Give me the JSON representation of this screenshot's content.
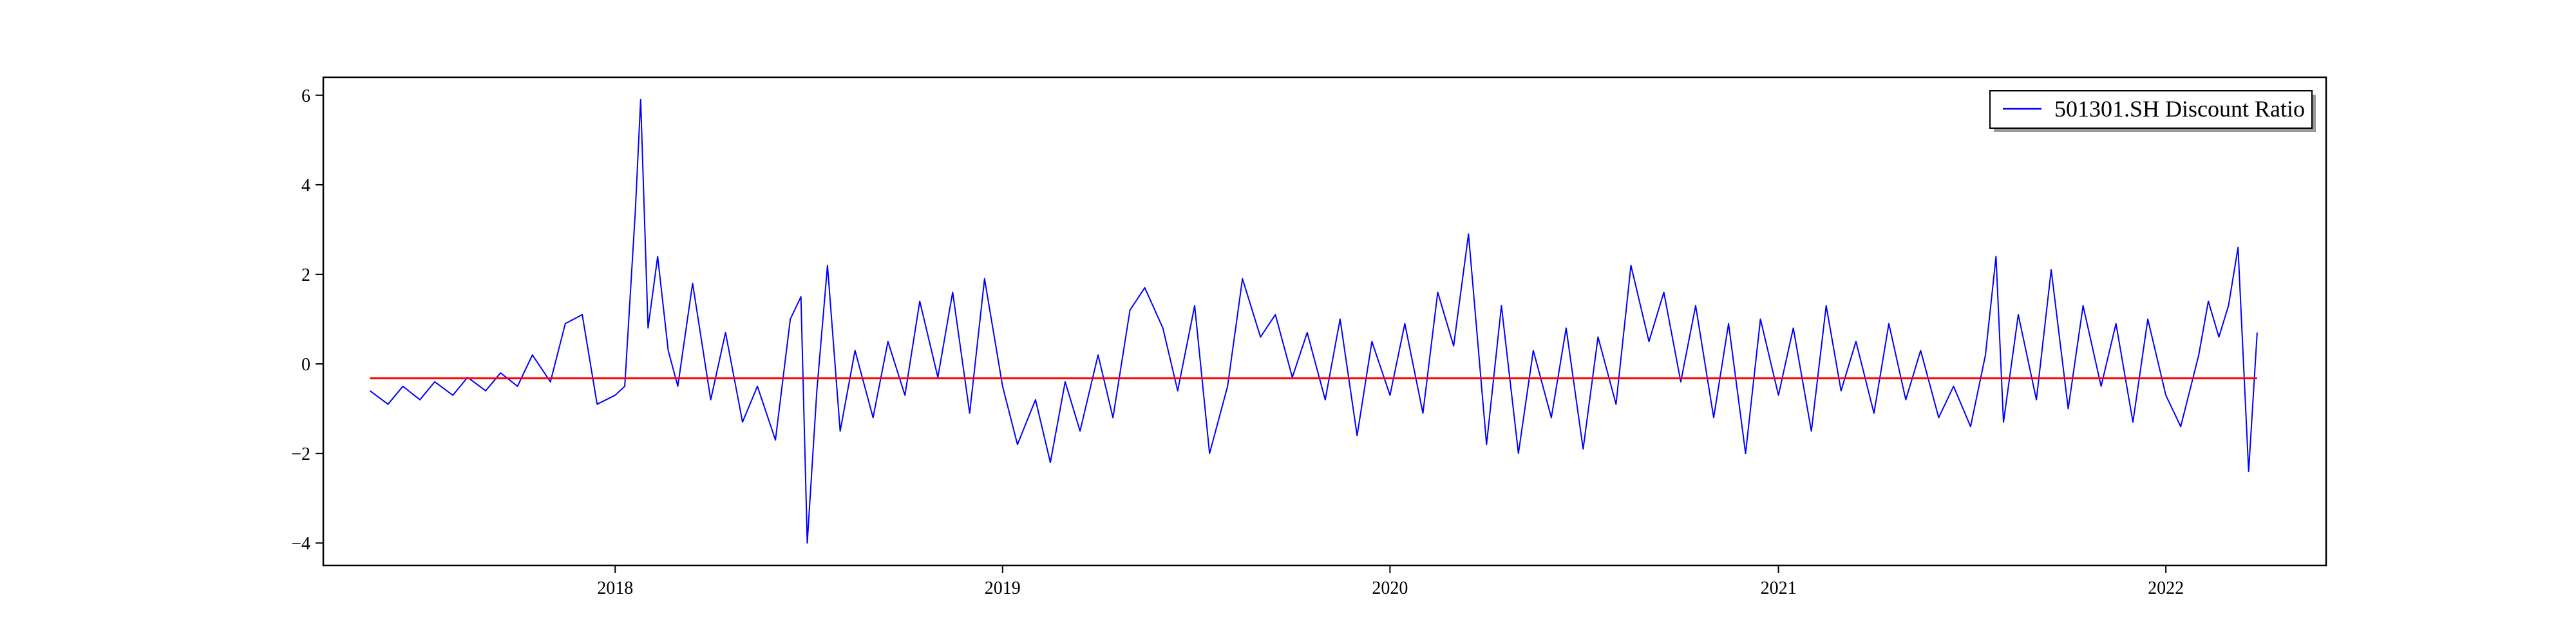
{
  "chart_data": {
    "type": "line",
    "title": "",
    "xlabel": "",
    "ylabel": "",
    "xlim": [
      "2017-04-01",
      "2022-06-01"
    ],
    "ylim": [
      -4.5,
      6.4
    ],
    "xticks": [
      {
        "date": "2018-01-01",
        "label": "2018"
      },
      {
        "date": "2019-01-01",
        "label": "2019"
      },
      {
        "date": "2020-01-01",
        "label": "2020"
      },
      {
        "date": "2021-01-01",
        "label": "2021"
      },
      {
        "date": "2022-01-01",
        "label": "2022"
      }
    ],
    "yticks": [
      -4,
      -2,
      0,
      2,
      4,
      6
    ],
    "grid": false,
    "legend_position": "top-right",
    "series": [
      {
        "name": "501301.SH Discount Ratio",
        "color": "#0000ff",
        "points": [
          [
            "2017-05-15",
            -0.6
          ],
          [
            "2017-06-01",
            -0.9
          ],
          [
            "2017-06-15",
            -0.5
          ],
          [
            "2017-07-01",
            -0.8
          ],
          [
            "2017-07-15",
            -0.4
          ],
          [
            "2017-08-01",
            -0.7
          ],
          [
            "2017-08-15",
            -0.3
          ],
          [
            "2017-09-01",
            -0.6
          ],
          [
            "2017-09-15",
            -0.2
          ],
          [
            "2017-10-01",
            -0.5
          ],
          [
            "2017-10-15",
            0.2
          ],
          [
            "2017-11-01",
            -0.4
          ],
          [
            "2017-11-15",
            0.9
          ],
          [
            "2017-12-01",
            1.1
          ],
          [
            "2017-12-15",
            -0.9
          ],
          [
            "2018-01-01",
            -0.7
          ],
          [
            "2018-01-10",
            -0.5
          ],
          [
            "2018-01-20",
            3.4
          ],
          [
            "2018-01-25",
            5.9
          ],
          [
            "2018-02-01",
            0.8
          ],
          [
            "2018-02-10",
            2.4
          ],
          [
            "2018-02-20",
            0.3
          ],
          [
            "2018-03-01",
            -0.5
          ],
          [
            "2018-03-15",
            1.8
          ],
          [
            "2018-04-01",
            -0.8
          ],
          [
            "2018-04-15",
            0.7
          ],
          [
            "2018-05-01",
            -1.3
          ],
          [
            "2018-05-15",
            -0.5
          ],
          [
            "2018-06-01",
            -1.7
          ],
          [
            "2018-06-15",
            1.0
          ],
          [
            "2018-06-25",
            1.5
          ],
          [
            "2018-07-01",
            -4.0
          ],
          [
            "2018-07-10",
            -0.6
          ],
          [
            "2018-07-20",
            2.2
          ],
          [
            "2018-08-01",
            -1.5
          ],
          [
            "2018-08-15",
            0.3
          ],
          [
            "2018-09-01",
            -1.2
          ],
          [
            "2018-09-15",
            0.5
          ],
          [
            "2018-10-01",
            -0.7
          ],
          [
            "2018-10-15",
            1.4
          ],
          [
            "2018-11-01",
            -0.3
          ],
          [
            "2018-11-15",
            1.6
          ],
          [
            "2018-12-01",
            -1.1
          ],
          [
            "2018-12-15",
            1.9
          ],
          [
            "2019-01-01",
            -0.5
          ],
          [
            "2019-01-15",
            -1.8
          ],
          [
            "2019-02-01",
            -0.8
          ],
          [
            "2019-02-15",
            -2.2
          ],
          [
            "2019-03-01",
            -0.4
          ],
          [
            "2019-03-15",
            -1.5
          ],
          [
            "2019-04-01",
            0.2
          ],
          [
            "2019-04-15",
            -1.2
          ],
          [
            "2019-05-01",
            1.2
          ],
          [
            "2019-05-15",
            1.7
          ],
          [
            "2019-06-01",
            0.8
          ],
          [
            "2019-06-15",
            -0.6
          ],
          [
            "2019-07-01",
            1.3
          ],
          [
            "2019-07-15",
            -2.0
          ],
          [
            "2019-08-01",
            -0.5
          ],
          [
            "2019-08-15",
            1.9
          ],
          [
            "2019-09-01",
            0.6
          ],
          [
            "2019-09-15",
            1.1
          ],
          [
            "2019-10-01",
            -0.3
          ],
          [
            "2019-10-15",
            0.7
          ],
          [
            "2019-11-01",
            -0.8
          ],
          [
            "2019-11-15",
            1.0
          ],
          [
            "2019-12-01",
            -1.6
          ],
          [
            "2019-12-15",
            0.5
          ],
          [
            "2020-01-01",
            -0.7
          ],
          [
            "2020-01-15",
            0.9
          ],
          [
            "2020-02-01",
            -1.1
          ],
          [
            "2020-02-15",
            1.6
          ],
          [
            "2020-03-01",
            0.4
          ],
          [
            "2020-03-15",
            2.9
          ],
          [
            "2020-04-01",
            -1.8
          ],
          [
            "2020-04-15",
            1.3
          ],
          [
            "2020-05-01",
            -2.0
          ],
          [
            "2020-05-15",
            0.3
          ],
          [
            "2020-06-01",
            -1.2
          ],
          [
            "2020-06-15",
            0.8
          ],
          [
            "2020-07-01",
            -1.9
          ],
          [
            "2020-07-15",
            0.6
          ],
          [
            "2020-08-01",
            -0.9
          ],
          [
            "2020-08-15",
            2.2
          ],
          [
            "2020-09-01",
            0.5
          ],
          [
            "2020-09-15",
            1.6
          ],
          [
            "2020-10-01",
            -0.4
          ],
          [
            "2020-10-15",
            1.3
          ],
          [
            "2020-11-01",
            -1.2
          ],
          [
            "2020-11-15",
            0.9
          ],
          [
            "2020-12-01",
            -2.0
          ],
          [
            "2020-12-15",
            1.0
          ],
          [
            "2021-01-01",
            -0.7
          ],
          [
            "2021-01-15",
            0.8
          ],
          [
            "2021-02-01",
            -1.5
          ],
          [
            "2021-02-15",
            1.3
          ],
          [
            "2021-03-01",
            -0.6
          ],
          [
            "2021-03-15",
            0.5
          ],
          [
            "2021-04-01",
            -1.1
          ],
          [
            "2021-04-15",
            0.9
          ],
          [
            "2021-05-01",
            -0.8
          ],
          [
            "2021-05-15",
            0.3
          ],
          [
            "2021-06-01",
            -1.2
          ],
          [
            "2021-06-15",
            -0.5
          ],
          [
            "2021-07-01",
            -1.4
          ],
          [
            "2021-07-15",
            0.2
          ],
          [
            "2021-07-25",
            2.4
          ],
          [
            "2021-08-01",
            -1.3
          ],
          [
            "2021-08-15",
            1.1
          ],
          [
            "2021-09-01",
            -0.8
          ],
          [
            "2021-09-15",
            2.1
          ],
          [
            "2021-10-01",
            -1.0
          ],
          [
            "2021-10-15",
            1.3
          ],
          [
            "2021-11-01",
            -0.5
          ],
          [
            "2021-11-15",
            0.9
          ],
          [
            "2021-12-01",
            -1.3
          ],
          [
            "2021-12-15",
            1.0
          ],
          [
            "2022-01-01",
            -0.7
          ],
          [
            "2022-01-15",
            -1.4
          ],
          [
            "2022-02-01",
            0.2
          ],
          [
            "2022-02-10",
            1.4
          ],
          [
            "2022-02-20",
            0.6
          ],
          [
            "2022-03-01",
            1.3
          ],
          [
            "2022-03-10",
            2.6
          ],
          [
            "2022-03-20",
            -2.4
          ],
          [
            "2022-03-28",
            0.7
          ]
        ]
      }
    ],
    "reference_lines": [
      {
        "color": "#ff0000",
        "y": -0.32,
        "x_start": "2017-05-15",
        "x_end": "2022-03-28"
      }
    ]
  }
}
